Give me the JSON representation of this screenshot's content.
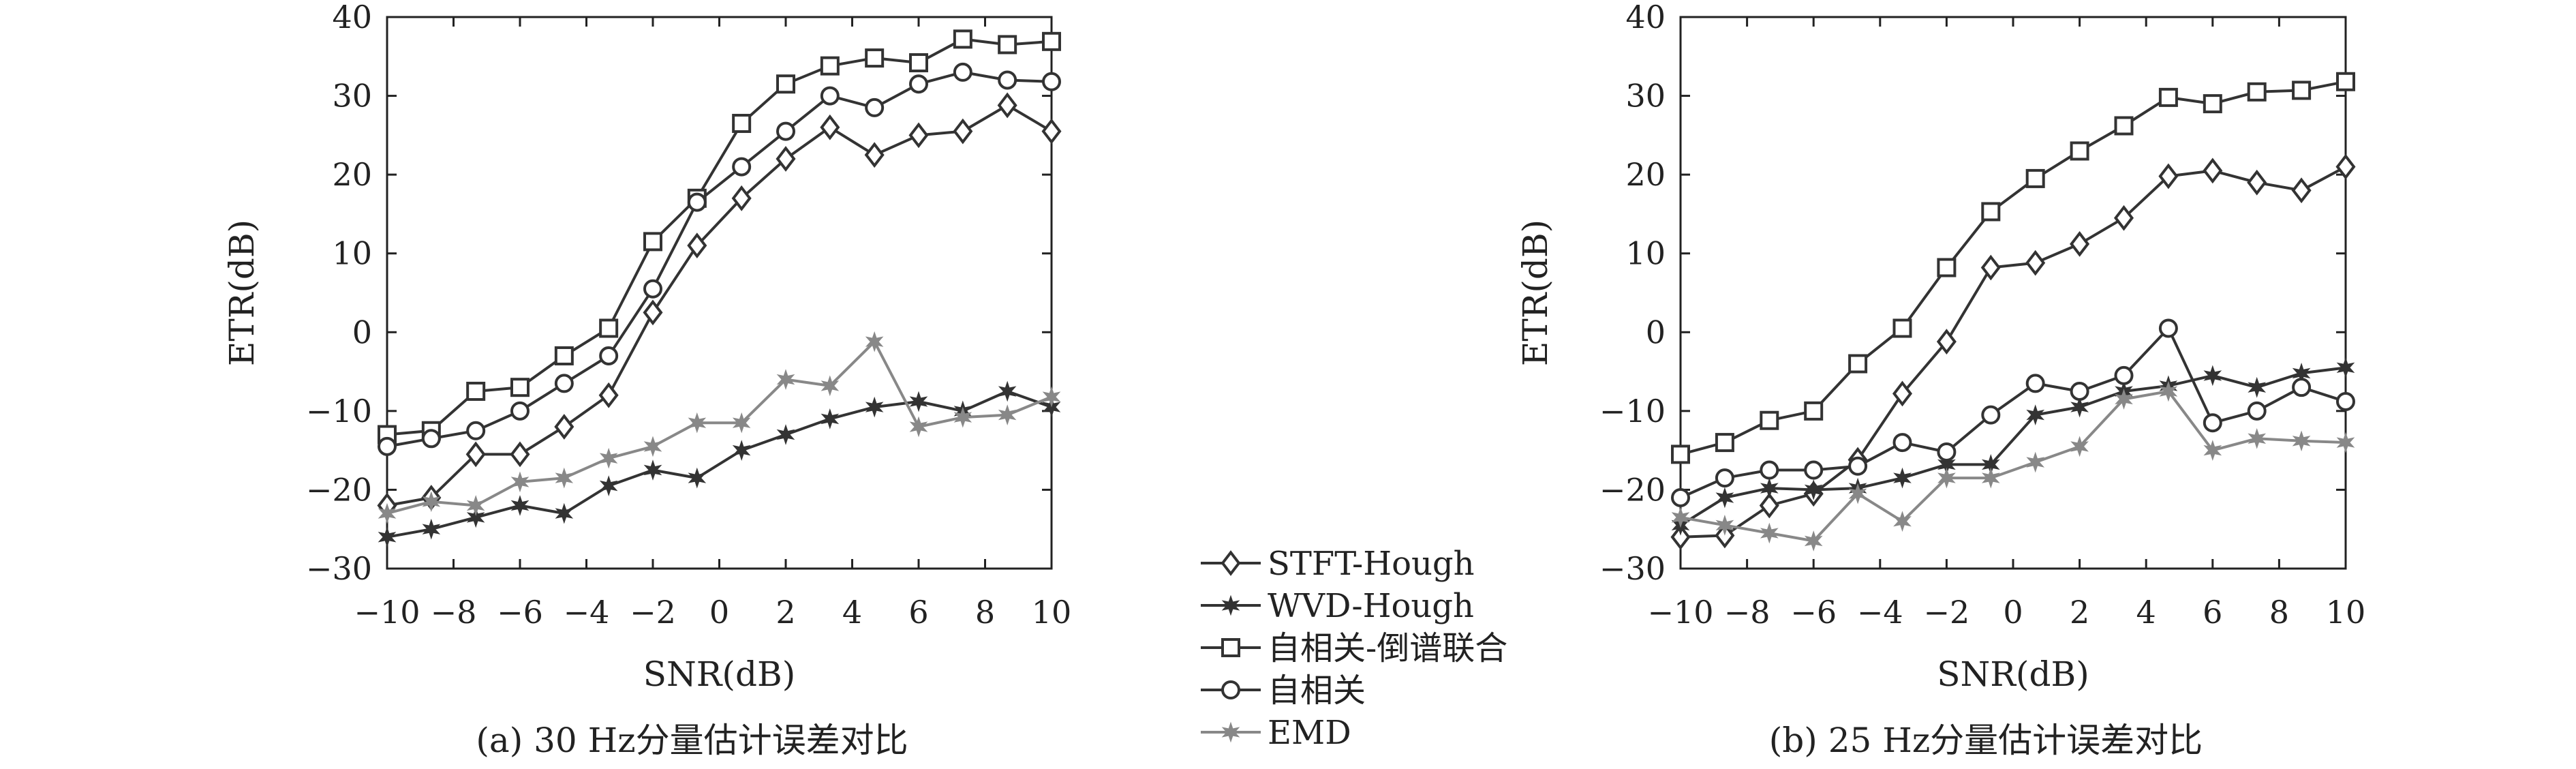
{
  "chart_data": [
    {
      "type": "line",
      "caption": "(a) 30 Hz分量估计误差对比",
      "xlabel": "SNR(dB)",
      "ylabel": "ETR(dB)",
      "xlim": [
        -10,
        10
      ],
      "ylim": [
        -30,
        40
      ],
      "xticks": [
        -10,
        -8,
        -6,
        -4,
        -2,
        0,
        2,
        4,
        6,
        8,
        10
      ],
      "yticks": [
        -30,
        -20,
        -10,
        0,
        10,
        20,
        30,
        40
      ],
      "xtick_labels": [
        "−10",
        "−8",
        "−6",
        "−4",
        "−2",
        "0",
        "2",
        "4",
        "6",
        "8",
        "10"
      ],
      "ytick_labels": [
        "−30",
        "−20",
        "−10",
        "0",
        "10",
        "20",
        "30",
        "40"
      ],
      "grid": false,
      "x": [
        -10,
        -8.67,
        -7.33,
        -6,
        -4.67,
        -3.33,
        -2,
        -0.67,
        0.67,
        2,
        3.33,
        4.67,
        6,
        7.33,
        8.67,
        10
      ],
      "series": [
        {
          "name": "STFT-Hough",
          "marker": "diamond",
          "color": "#333333",
          "values": [
            -22,
            -21,
            -15.5,
            -15.5,
            -12,
            -8,
            2.5,
            11,
            17,
            22,
            26,
            22.5,
            25,
            25.5,
            28.8,
            25.5
          ]
        },
        {
          "name": "WVD-Hough",
          "marker": "star",
          "color": "#333333",
          "values": [
            -26,
            -25,
            -23.5,
            -22,
            -23,
            -19.5,
            -17.5,
            -18.5,
            -15,
            -13,
            -11,
            -9.5,
            -8.8,
            -10,
            -7.5,
            -9.5
          ]
        },
        {
          "name": "自相关-倒谱联合",
          "marker": "square",
          "color": "#333333",
          "values": [
            -13,
            -12.5,
            -7.5,
            -7,
            -3,
            0.5,
            11.5,
            17,
            26.5,
            31.5,
            33.8,
            34.8,
            34.2,
            37.2,
            36.5,
            36.9
          ]
        },
        {
          "name": "自相关",
          "marker": "circle",
          "color": "#333333",
          "values": [
            -14.5,
            -13.5,
            -12.5,
            -10,
            -6.5,
            -3,
            5.5,
            16.5,
            21,
            25.5,
            30,
            28.5,
            31.5,
            33,
            32,
            31.8
          ]
        },
        {
          "name": "EMD",
          "marker": "star-gray",
          "color": "#888888",
          "values": [
            -23,
            -21.5,
            -22,
            -19,
            -18.5,
            -16,
            -14.5,
            -11.5,
            -11.5,
            -6,
            -6.8,
            -1.2,
            -12,
            -10.8,
            -10.5,
            -8.2
          ]
        }
      ]
    },
    {
      "type": "line",
      "caption": "(b) 25 Hz分量估计误差对比",
      "xlabel": "SNR(dB)",
      "ylabel": "ETR(dB)",
      "xlim": [
        -10,
        10
      ],
      "ylim": [
        -30,
        40
      ],
      "xticks": [
        -10,
        -8,
        -6,
        -4,
        -2,
        0,
        2,
        4,
        6,
        8,
        10
      ],
      "yticks": [
        -30,
        -20,
        -10,
        0,
        10,
        20,
        30,
        40
      ],
      "xtick_labels": [
        "−10",
        "−8",
        "−6",
        "−4",
        "−2",
        "0",
        "2",
        "4",
        "6",
        "8",
        "10"
      ],
      "ytick_labels": [
        "−30",
        "−20",
        "−10",
        "0",
        "10",
        "20",
        "30",
        "40"
      ],
      "grid": false,
      "x": [
        -10,
        -8.67,
        -7.33,
        -6,
        -4.67,
        -3.33,
        -2,
        -0.67,
        0.67,
        2,
        3.33,
        4.67,
        6,
        7.33,
        8.67,
        10
      ],
      "series": [
        {
          "name": "STFT-Hough",
          "marker": "diamond",
          "color": "#333333",
          "values": [
            -26,
            -25.8,
            -22,
            -20.5,
            -16.2,
            -7.8,
            -1.2,
            8.2,
            8.8,
            11.2,
            14.5,
            19.8,
            20.5,
            19,
            18,
            21
          ]
        },
        {
          "name": "WVD-Hough",
          "marker": "star",
          "color": "#333333",
          "values": [
            -24.5,
            -21,
            -19.8,
            -20,
            -19.8,
            -18.5,
            -16.8,
            -16.8,
            -10.5,
            -9.5,
            -7.5,
            -6.8,
            -5.5,
            -7,
            -5.2,
            -4.5
          ]
        },
        {
          "name": "自相关-倒谱联合",
          "marker": "square",
          "color": "#333333",
          "values": [
            -15.5,
            -14,
            -11.2,
            -10,
            -4,
            0.5,
            8.2,
            15.3,
            19.5,
            23,
            26.2,
            29.8,
            29,
            30.5,
            30.7,
            31.8
          ]
        },
        {
          "name": "自相关",
          "marker": "circle",
          "color": "#333333",
          "values": [
            -21,
            -18.5,
            -17.5,
            -17.5,
            -17,
            -14,
            -15.2,
            -10.5,
            -6.5,
            -7.5,
            -5.5,
            0.5,
            -11.5,
            -10,
            -7,
            -8.8
          ]
        },
        {
          "name": "EMD",
          "marker": "star-gray",
          "color": "#888888",
          "values": [
            -23.5,
            -24.5,
            -25.5,
            -26.5,
            -20.5,
            -24,
            -18.5,
            -18.5,
            -16.5,
            -14.5,
            -8.5,
            -7.5,
            -15,
            -13.5,
            -13.8,
            -14
          ]
        }
      ]
    }
  ],
  "legend": {
    "placement": "bottom-center",
    "items": [
      {
        "label": "STFT-Hough",
        "marker": "diamond",
        "color": "#333333"
      },
      {
        "label": "WVD-Hough",
        "marker": "star",
        "color": "#333333"
      },
      {
        "label": "自相关-倒谱联合",
        "marker": "square",
        "color": "#333333"
      },
      {
        "label": "自相关",
        "marker": "circle",
        "color": "#333333"
      },
      {
        "label": "EMD",
        "marker": "star-gray",
        "color": "#888888"
      }
    ]
  }
}
